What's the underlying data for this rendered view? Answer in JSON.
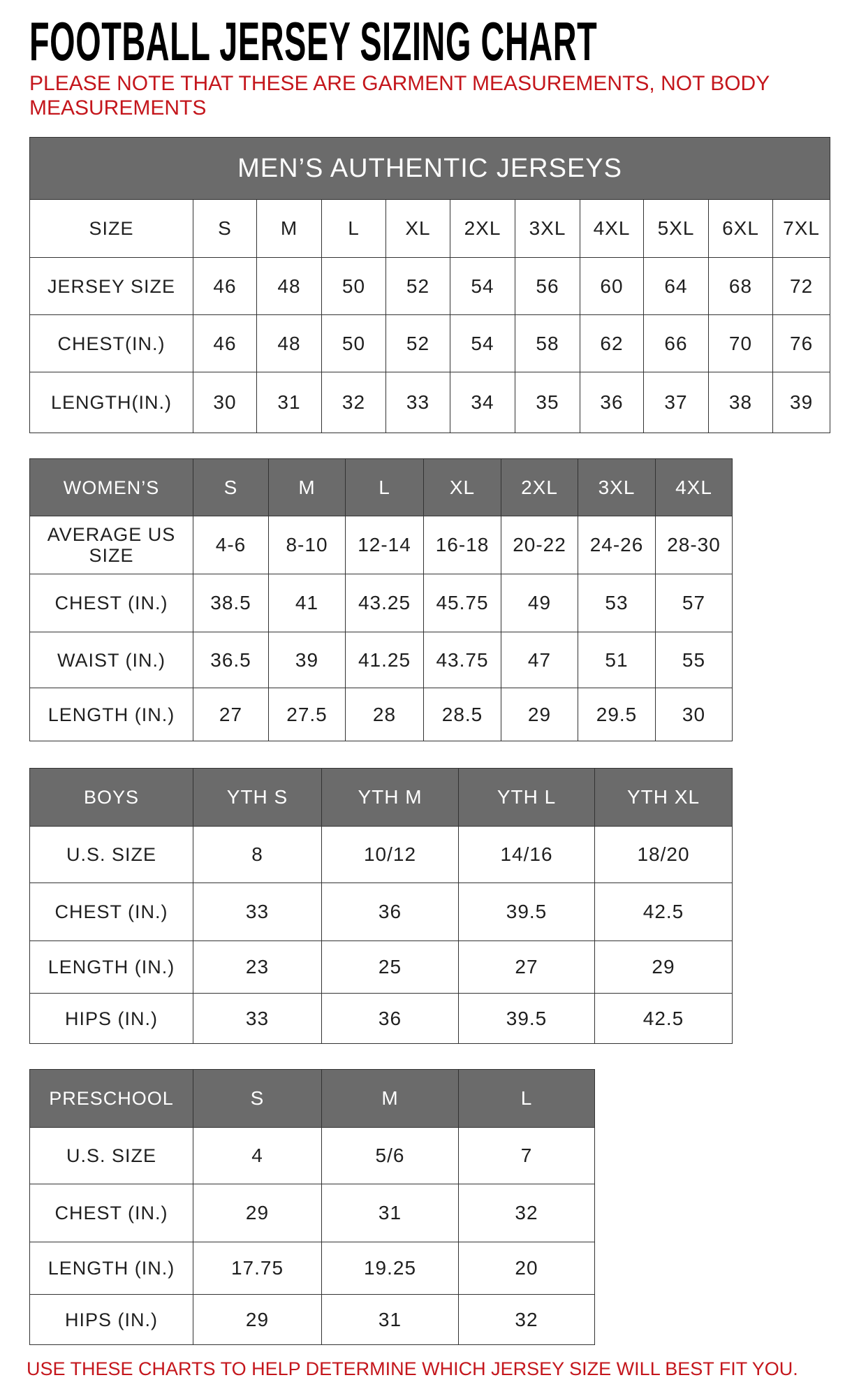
{
  "title": "FOOTBALL JERSEY SIZING CHART",
  "note": "PLEASE NOTE THAT THESE ARE GARMENT MEASUREMENTS, NOT BODY MEASUREMENTS",
  "footer": "USE THESE CHARTS TO HELP DETERMINE WHICH JERSEY SIZE WILL BEST FIT YOU.",
  "colors": {
    "header_bg": "#6b6b6b",
    "accent_red": "#c4161c"
  },
  "tables": [
    {
      "banner": "MEN’S AUTHENTIC JERSEYS",
      "header_label": "SIZE",
      "columns": [
        "S",
        "M",
        "L",
        "XL",
        "2XL",
        "3XL",
        "4XL",
        "5XL",
        "6XL",
        "7XL"
      ],
      "header_dark": false,
      "rows": [
        {
          "label": "JERSEY SIZE",
          "values": [
            "46",
            "48",
            "50",
            "52",
            "54",
            "56",
            "60",
            "64",
            "68",
            "72"
          ]
        },
        {
          "label": "CHEST(IN.)",
          "values": [
            "46",
            "48",
            "50",
            "52",
            "54",
            "58",
            "62",
            "66",
            "70",
            "76"
          ]
        },
        {
          "label": "LENGTH(IN.)",
          "values": [
            "30",
            "31",
            "32",
            "33",
            "34",
            "35",
            "36",
            "37",
            "38",
            "39"
          ]
        }
      ]
    },
    {
      "header_label": "WOMEN’S",
      "columns": [
        "S",
        "M",
        "L",
        "XL",
        "2XL",
        "3XL",
        "4XL"
      ],
      "header_dark": true,
      "rows": [
        {
          "label": "AVERAGE US SIZE",
          "values": [
            "4-6",
            "8-10",
            "12-14",
            "16-18",
            "20-22",
            "24-26",
            "28-30"
          ]
        },
        {
          "label": "CHEST (IN.)",
          "values": [
            "38.5",
            "41",
            "43.25",
            "45.75",
            "49",
            "53",
            "57"
          ]
        },
        {
          "label": "WAIST (IN.)",
          "values": [
            "36.5",
            "39",
            "41.25",
            "43.75",
            "47",
            "51",
            "55"
          ]
        },
        {
          "label": "LENGTH (IN.)",
          "values": [
            "27",
            "27.5",
            "28",
            "28.5",
            "29",
            "29.5",
            "30"
          ]
        }
      ]
    },
    {
      "header_label": "BOYS",
      "columns": [
        "YTH S",
        "YTH M",
        "YTH L",
        "YTH XL"
      ],
      "header_dark": true,
      "rows": [
        {
          "label": "U.S. SIZE",
          "values": [
            "8",
            "10/12",
            "14/16",
            "18/20"
          ]
        },
        {
          "label": "CHEST (IN.)",
          "values": [
            "33",
            "36",
            "39.5",
            "42.5"
          ]
        },
        {
          "label": "LENGTH (IN.)",
          "values": [
            "23",
            "25",
            "27",
            "29"
          ]
        },
        {
          "label": "HIPS (IN.)",
          "values": [
            "33",
            "36",
            "39.5",
            "42.5"
          ]
        }
      ]
    },
    {
      "header_label": "PRESCHOOL",
      "columns": [
        "S",
        "M",
        "L"
      ],
      "header_dark": true,
      "rows": [
        {
          "label": "U.S. SIZE",
          "values": [
            "4",
            "5/6",
            "7"
          ]
        },
        {
          "label": "CHEST (IN.)",
          "values": [
            "29",
            "31",
            "32"
          ]
        },
        {
          "label": "LENGTH (IN.)",
          "values": [
            "17.75",
            "19.25",
            "20"
          ]
        },
        {
          "label": "HIPS (IN.)",
          "values": [
            "29",
            "31",
            "32"
          ]
        }
      ]
    }
  ]
}
